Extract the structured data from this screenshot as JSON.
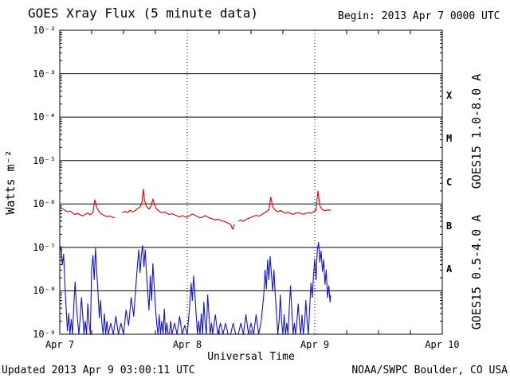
{
  "header": {
    "begin": "Begin:  2013 Apr 7 0000 UTC"
  },
  "footer": {
    "updated": "Updated 2013 Apr  9 03:00:11 UTC",
    "source": "NOAA/SWPC Boulder, CO USA"
  },
  "chart_data": {
    "type": "line",
    "title": "GOES Xray Flux (5 minute data)",
    "xlabel": "Universal Time",
    "ylabel": "Watts m⁻²",
    "x_tick_labels": [
      "Apr 7",
      "Apr 8",
      "Apr 9",
      "Apr 10"
    ],
    "x_range_days": 3,
    "y_scale": "log",
    "y_exponent_range": [
      -2,
      -9
    ],
    "y_tick_labels": [
      "10⁻²",
      "10⁻³",
      "10⁻⁴",
      "10⁻⁵",
      "10⁻⁶",
      "10⁻⁷",
      "10⁻⁸",
      "10⁻⁹"
    ],
    "grid": "on",
    "flare_classes": [
      {
        "label": "X",
        "log_center": -3.5
      },
      {
        "label": "M",
        "log_center": -4.5
      },
      {
        "label": "C",
        "log_center": -5.5
      },
      {
        "label": "B",
        "log_center": -6.5
      },
      {
        "label": "A",
        "log_center": -7.5
      }
    ],
    "series": [
      {
        "name": "GOES15 1.0-8.0 A",
        "color": "#dd0000",
        "points": [
          [
            0.0,
            8.5e-07
          ],
          [
            0.02,
            7.8e-07
          ],
          [
            0.04,
            7.2e-07
          ],
          [
            0.06,
            6.6e-07
          ],
          [
            0.08,
            6.9e-07
          ],
          [
            0.1,
            6.2e-07
          ],
          [
            0.12,
            5.7e-07
          ],
          [
            0.14,
            6.1e-07
          ],
          [
            0.16,
            5.6e-07
          ],
          [
            0.18,
            5.3e-07
          ],
          [
            0.2,
            5.8e-07
          ],
          [
            0.22,
            6.2e-07
          ],
          [
            0.24,
            5.6e-07
          ],
          [
            0.26,
            6.4e-07
          ],
          [
            0.275,
            1.25e-06
          ],
          [
            0.29,
            8.2e-07
          ],
          [
            0.31,
            6.5e-07
          ],
          [
            0.33,
            5.8e-07
          ],
          [
            0.35,
            5.4e-07
          ],
          [
            0.37,
            5.1e-07
          ],
          [
            0.39,
            5.3e-07
          ],
          [
            0.41,
            5e-07
          ],
          [
            0.43,
            4.8e-07
          ],
          [
            0.45,
            null
          ],
          [
            0.47,
            null
          ],
          [
            0.49,
            6.2e-07
          ],
          [
            0.51,
            6.8e-07
          ],
          [
            0.53,
            6.3e-07
          ],
          [
            0.55,
            7.2e-07
          ],
          [
            0.57,
            6.6e-07
          ],
          [
            0.59,
            7e-07
          ],
          [
            0.61,
            7.8e-07
          ],
          [
            0.63,
            8.6e-07
          ],
          [
            0.645,
            1.1e-06
          ],
          [
            0.655,
            2.2e-06
          ],
          [
            0.665,
            1.2e-06
          ],
          [
            0.68,
            8.8e-07
          ],
          [
            0.7,
            7.6e-07
          ],
          [
            0.715,
            9e-07
          ],
          [
            0.73,
            1.3e-06
          ],
          [
            0.745,
            9.2e-07
          ],
          [
            0.76,
            7.6e-07
          ],
          [
            0.78,
            6.8e-07
          ],
          [
            0.8,
            6.2e-07
          ],
          [
            0.82,
            6.6e-07
          ],
          [
            0.84,
            6.1e-07
          ],
          [
            0.86,
            5.7e-07
          ],
          [
            0.88,
            6e-07
          ],
          [
            0.9,
            5.6e-07
          ],
          [
            0.92,
            5.3e-07
          ],
          [
            0.94,
            5e-07
          ],
          [
            0.96,
            5.4e-07
          ],
          [
            0.98,
            5.1e-07
          ],
          [
            1.0,
            5e-07
          ],
          [
            1.02,
            5.4e-07
          ],
          [
            1.04,
            5.9e-07
          ],
          [
            1.06,
            5.5e-07
          ],
          [
            1.08,
            5.1e-07
          ],
          [
            1.1,
            4.8e-07
          ],
          [
            1.12,
            5e-07
          ],
          [
            1.14,
            5.4e-07
          ],
          [
            1.16,
            5e-07
          ],
          [
            1.18,
            4.7e-07
          ],
          [
            1.2,
            4.5e-07
          ],
          [
            1.22,
            4.3e-07
          ],
          [
            1.24,
            4.5e-07
          ],
          [
            1.26,
            4.2e-07
          ],
          [
            1.28,
            4e-07
          ],
          [
            1.3,
            3.9e-07
          ],
          [
            1.32,
            3.6e-07
          ],
          [
            1.34,
            3.4e-07
          ],
          [
            1.355,
            2.6e-07
          ],
          [
            1.37,
            3.4e-07
          ],
          [
            1.385,
            null
          ],
          [
            1.4,
            4e-07
          ],
          [
            1.42,
            4.2e-07
          ],
          [
            1.44,
            4e-07
          ],
          [
            1.46,
            4.4e-07
          ],
          [
            1.48,
            4.7e-07
          ],
          [
            1.5,
            4.9e-07
          ],
          [
            1.52,
            5.2e-07
          ],
          [
            1.54,
            5.5e-07
          ],
          [
            1.56,
            5.2e-07
          ],
          [
            1.58,
            5.6e-07
          ],
          [
            1.6,
            6.1e-07
          ],
          [
            1.62,
            6.6e-07
          ],
          [
            1.64,
            7.4e-07
          ],
          [
            1.655,
            1.45e-06
          ],
          [
            1.67,
            8.6e-07
          ],
          [
            1.69,
            7.2e-07
          ],
          [
            1.71,
            6.6e-07
          ],
          [
            1.73,
            7.1e-07
          ],
          [
            1.75,
            6.6e-07
          ],
          [
            1.77,
            6.1e-07
          ],
          [
            1.79,
            6.5e-07
          ],
          [
            1.81,
            6e-07
          ],
          [
            1.83,
            5.8e-07
          ],
          [
            1.85,
            6.1e-07
          ],
          [
            1.87,
            6.3e-07
          ],
          [
            1.89,
            6e-07
          ],
          [
            1.91,
            5.8e-07
          ],
          [
            1.93,
            6.1e-07
          ],
          [
            1.95,
            6.3e-07
          ],
          [
            1.97,
            6.1e-07
          ],
          [
            1.99,
            6.6e-07
          ],
          [
            2.01,
            7.2e-07
          ],
          [
            2.025,
            2e-06
          ],
          [
            2.04,
            9e-07
          ],
          [
            2.06,
            7.4e-07
          ],
          [
            2.08,
            7e-07
          ],
          [
            2.1,
            7.3e-07
          ],
          [
            2.125,
            7.2e-07
          ]
        ]
      },
      {
        "name": "GOES15 0.5-4.0 A",
        "color": "#1414cc",
        "points": [
          [
            0.0,
            9e-08
          ],
          [
            0.01,
            1.05e-07
          ],
          [
            0.02,
            4e-08
          ],
          [
            0.03,
            7e-08
          ],
          [
            0.04,
            1.5e-08
          ],
          [
            0.05,
            4e-09
          ],
          [
            0.06,
            1.2e-09
          ],
          [
            0.07,
            3e-09
          ],
          [
            0.08,
            1e-09
          ],
          [
            0.09,
            2.2e-09
          ],
          [
            0.1,
            1e-09
          ],
          [
            0.11,
            4.5e-09
          ],
          [
            0.12,
            1.6e-08
          ],
          [
            0.13,
            5e-09
          ],
          [
            0.14,
            2e-09
          ],
          [
            0.15,
            1e-09
          ],
          [
            0.16,
            2.4e-09
          ],
          [
            0.17,
            7e-09
          ],
          [
            0.18,
            2.8e-09
          ],
          [
            0.19,
            1e-09
          ],
          [
            0.2,
            2e-09
          ],
          [
            0.21,
            1e-09
          ],
          [
            0.22,
            5e-09
          ],
          [
            0.23,
            1.8e-09
          ],
          [
            0.24,
            1e-09
          ],
          [
            0.25,
            3.2e-08
          ],
          [
            0.26,
            6.5e-08
          ],
          [
            0.27,
            1.8e-08
          ],
          [
            0.28,
            9.5e-08
          ],
          [
            0.29,
            2.8e-08
          ],
          [
            0.3,
            9e-09
          ],
          [
            0.31,
            2.4e-09
          ],
          [
            0.32,
            6e-09
          ],
          [
            0.33,
            1.8e-09
          ],
          [
            0.34,
            1e-09
          ],
          [
            0.35,
            3e-09
          ],
          [
            0.36,
            1e-09
          ],
          [
            0.37,
            2e-09
          ],
          [
            0.38,
            1e-09
          ],
          [
            0.4,
            1.8e-09
          ],
          [
            0.42,
            1e-09
          ],
          [
            0.44,
            2.6e-09
          ],
          [
            0.46,
            1e-09
          ],
          [
            0.48,
            1.8e-09
          ],
          [
            0.5,
            1e-09
          ],
          [
            0.52,
            3.6e-09
          ],
          [
            0.54,
            1.6e-09
          ],
          [
            0.56,
            7e-09
          ],
          [
            0.58,
            2.6e-09
          ],
          [
            0.595,
            1.1e-08
          ],
          [
            0.61,
            4.2e-08
          ],
          [
            0.62,
            8.8e-08
          ],
          [
            0.63,
            2.6e-08
          ],
          [
            0.64,
            6.8e-08
          ],
          [
            0.65,
            1.1e-07
          ],
          [
            0.66,
            3.6e-08
          ],
          [
            0.67,
            8.8e-08
          ],
          [
            0.68,
            2.6e-08
          ],
          [
            0.69,
            9e-09
          ],
          [
            0.7,
            3.6e-09
          ],
          [
            0.71,
            2.2e-08
          ],
          [
            0.72,
            6e-09
          ],
          [
            0.73,
            4.2e-08
          ],
          [
            0.74,
            1.4e-08
          ],
          [
            0.75,
            4.4e-09
          ],
          [
            0.76,
            1.8e-09
          ],
          [
            0.77,
            1e-09
          ],
          [
            0.78,
            2.8e-09
          ],
          [
            0.79,
            1e-09
          ],
          [
            0.8,
            2e-09
          ],
          [
            0.81,
            1e-09
          ],
          [
            0.82,
            3.8e-09
          ],
          [
            0.83,
            1e-09
          ],
          [
            0.84,
            1.8e-09
          ],
          [
            0.85,
            1e-09
          ],
          [
            0.86,
            1e-09
          ],
          [
            0.87,
            2e-09
          ],
          [
            0.88,
            1e-09
          ],
          [
            0.9,
            1.8e-09
          ],
          [
            0.92,
            1e-09
          ],
          [
            0.94,
            2.6e-09
          ],
          [
            0.96,
            1e-09
          ],
          [
            0.98,
            1.6e-09
          ],
          [
            1.0,
            1e-09
          ],
          [
            1.01,
            2.2e-09
          ],
          [
            1.02,
            5e-09
          ],
          [
            1.03,
            1.5e-08
          ],
          [
            1.04,
            6e-09
          ],
          [
            1.05,
            2.2e-08
          ],
          [
            1.06,
            8e-09
          ],
          [
            1.07,
            2.8e-09
          ],
          [
            1.08,
            1e-09
          ],
          [
            1.09,
            2e-09
          ],
          [
            1.1,
            1e-09
          ],
          [
            1.11,
            3e-09
          ],
          [
            1.12,
            1e-09
          ],
          [
            1.13,
            5.5e-09
          ],
          [
            1.14,
            1.8e-09
          ],
          [
            1.15,
            1e-09
          ],
          [
            1.16,
            8e-09
          ],
          [
            1.17,
            2.8e-09
          ],
          [
            1.18,
            1e-09
          ],
          [
            1.19,
            1.8e-09
          ],
          [
            1.2,
            1e-09
          ],
          [
            1.22,
            2.8e-09
          ],
          [
            1.24,
            1e-09
          ],
          [
            1.26,
            1.8e-09
          ],
          [
            1.28,
            1e-09
          ],
          [
            1.3,
            1.8e-09
          ],
          [
            1.32,
            1e-09
          ],
          [
            1.34,
            1e-09
          ],
          [
            1.36,
            1.8e-09
          ],
          [
            1.38,
            1e-09
          ],
          [
            1.4,
            1e-09
          ],
          [
            1.42,
            1.8e-09
          ],
          [
            1.44,
            1e-09
          ],
          [
            1.46,
            2.8e-09
          ],
          [
            1.48,
            1e-09
          ],
          [
            1.5,
            1.8e-09
          ],
          [
            1.52,
            1e-09
          ],
          [
            1.54,
            2.8e-09
          ],
          [
            1.56,
            1e-09
          ],
          [
            1.58,
            2e-09
          ],
          [
            1.6,
            8e-09
          ],
          [
            1.61,
            3e-08
          ],
          [
            1.62,
            1.1e-08
          ],
          [
            1.63,
            5.2e-08
          ],
          [
            1.64,
            1.8e-08
          ],
          [
            1.65,
            6.2e-08
          ],
          [
            1.66,
            2.4e-08
          ],
          [
            1.67,
            1e-08
          ],
          [
            1.68,
            3e-08
          ],
          [
            1.69,
            8e-09
          ],
          [
            1.7,
            3e-09
          ],
          [
            1.71,
            1e-09
          ],
          [
            1.72,
            2e-09
          ],
          [
            1.73,
            8e-09
          ],
          [
            1.74,
            2e-09
          ],
          [
            1.75,
            1e-09
          ],
          [
            1.76,
            2.8e-09
          ],
          [
            1.77,
            1e-09
          ],
          [
            1.78,
            1.8e-09
          ],
          [
            1.79,
            1e-09
          ],
          [
            1.8,
            4e-09
          ],
          [
            1.81,
            1.3e-08
          ],
          [
            1.82,
            3.6e-09
          ],
          [
            1.83,
            1e-09
          ],
          [
            1.84,
            1.8e-09
          ],
          [
            1.85,
            1e-09
          ],
          [
            1.86,
            2e-09
          ],
          [
            1.87,
            5e-09
          ],
          [
            1.88,
            1.8e-09
          ],
          [
            1.89,
            1e-09
          ],
          [
            1.9,
            2.8e-09
          ],
          [
            1.91,
            1e-09
          ],
          [
            1.92,
            1.8e-09
          ],
          [
            1.93,
            6e-09
          ],
          [
            1.94,
            2e-09
          ],
          [
            1.95,
            1e-09
          ],
          [
            1.96,
            4e-09
          ],
          [
            1.97,
            1.5e-08
          ],
          [
            1.98,
            7e-09
          ],
          [
            1.99,
            2.2e-08
          ],
          [
            2.0,
            5.5e-08
          ],
          [
            2.01,
            1.8e-08
          ],
          [
            2.02,
            9e-08
          ],
          [
            2.03,
            1.3e-07
          ],
          [
            2.04,
            4.6e-08
          ],
          [
            2.05,
            8.2e-08
          ],
          [
            2.06,
            2.8e-08
          ],
          [
            2.07,
            5.2e-08
          ],
          [
            2.08,
            1.4e-08
          ],
          [
            2.09,
            3e-08
          ],
          [
            2.1,
            7e-09
          ],
          [
            2.11,
            1.3e-08
          ],
          [
            2.12,
            5.5e-09
          ],
          [
            2.125,
            8e-09
          ]
        ]
      }
    ]
  }
}
